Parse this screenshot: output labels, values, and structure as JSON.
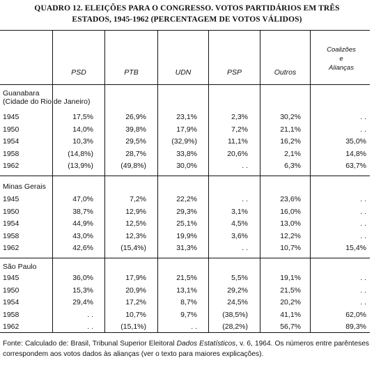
{
  "title_line1": "QUADRO 12.  ELEIÇÕES PARA O CONGRESSO.  VOTOS PARTIDÁRIOS EM TRÊS",
  "title_line2": "ESTADOS, 1945-1962 (PERCENTAGEM DE VOTOS VÁLIDOS)",
  "columns": [
    "PSD",
    "PTB",
    "UDN",
    "PSP",
    "Outros"
  ],
  "coalition_header": [
    "Coalizões",
    "e",
    "Alianças"
  ],
  "states": [
    {
      "name_line1": "Guanabara",
      "name_line2": "(Cidade do  Rio de  Janeiro)",
      "rows": [
        {
          "year": "1945",
          "PSD": "17,5%",
          "PTB": "26,9%",
          "UDN": "23,1%",
          "PSP": "2,3%",
          "Outros": "30,2%",
          "Coal": ". ."
        },
        {
          "year": "1950",
          "PSD": "14,0%",
          "PTB": "39,8%",
          "UDN": "17,9%",
          "PSP": "7,2%",
          "Outros": "21,1%",
          "Coal": ". ."
        },
        {
          "year": "1954",
          "PSD": "10,3%",
          "PTB": "29,5%",
          "UDN": "(32,9%)",
          "PSP": "11,1%",
          "Outros": "16,2%",
          "Coal": "35,0%"
        },
        {
          "year": "1958",
          "PSD": "(14,8%)",
          "PTB": "28,7%",
          "UDN": "33,8%",
          "PSP": "20,6%",
          "Outros": "2,1%",
          "Coal": "14,8%"
        },
        {
          "year": "1962",
          "PSD": "(13,9%)",
          "PTB": "(49,8%)",
          "UDN": "30,0%",
          "PSP": ". .",
          "Outros": "6,3%",
          "Coal": "63,7%"
        }
      ]
    },
    {
      "name_line1": "Minas Gerais",
      "name_line2": "",
      "rows": [
        {
          "year": "1945",
          "PSD": "47,0%",
          "PTB": "7,2%",
          "UDN": "22,2%",
          "PSP": ". .",
          "Outros": "23,6%",
          "Coal": ". ."
        },
        {
          "year": "1950",
          "PSD": "38,7%",
          "PTB": "12,9%",
          "UDN": "29,3%",
          "PSP": "3,1%",
          "Outros": "16,0%",
          "Coal": ". ."
        },
        {
          "year": "1954",
          "PSD": "44,9%",
          "PTB": "12,5%",
          "UDN": "25,1%",
          "PSP": "4,5%",
          "Outros": "13,0%",
          "Coal": ". ."
        },
        {
          "year": "1958",
          "PSD": "43,0%",
          "PTB": "12,3%",
          "UDN": "19,9%",
          "PSP": "3,6%",
          "Outros": "12,2%",
          "Coal": ". ."
        },
        {
          "year": "1962",
          "PSD": "42,6%",
          "PTB": "(15,4%)",
          "UDN": "31,3%",
          "PSP": ". .",
          "Outros": "10,7%",
          "Coal": "15,4%"
        }
      ]
    },
    {
      "name_line1": "São Paulo",
      "name_line2": "",
      "rows": [
        {
          "year": "1945",
          "PSD": "36,0%",
          "PTB": "17,9%",
          "UDN": "21,5%",
          "PSP": "5,5%",
          "Outros": "19,1%",
          "Coal": ". ."
        },
        {
          "year": "1950",
          "PSD": "15,3%",
          "PTB": "20,9%",
          "UDN": "13,1%",
          "PSP": "29,2%",
          "Outros": "21,5%",
          "Coal": ". ."
        },
        {
          "year": "1954",
          "PSD": "29,4%",
          "PTB": "17,2%",
          "UDN": "8,7%",
          "PSP": "24,5%",
          "Outros": "20,2%",
          "Coal": ". ."
        },
        {
          "year": "1958",
          "PSD": ". .",
          "PTB": "10,7%",
          "UDN": "9,7%",
          "PSP": "(38,5%)",
          "Outros": "41,1%",
          "Coal": "62,0%"
        },
        {
          "year": "1962",
          "PSD": ". .",
          "PTB": "(15,1%)",
          "UDN": ". .",
          "PSP": "(28,2%)",
          "Outros": "56,7%",
          "Coal": "89,3%"
        }
      ]
    }
  ],
  "footnote": {
    "prefix": "Fonte: Calculado de: Brasil, Tribunal Superior Eleitoral ",
    "italic": "Dados Estatísticos",
    "suffix": ", v. 6, 1964. Os números entre parênteses correspondem aos votos dados às alianças (ver o texto para maiores explicações)."
  }
}
